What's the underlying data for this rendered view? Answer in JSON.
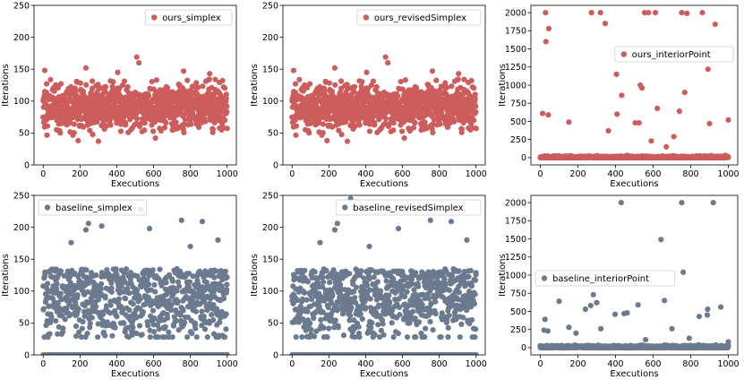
{
  "colors": {
    "ours": "#cd5c5c",
    "baseline": "#6b7a8f"
  },
  "chart_data": [
    {
      "id": "ours_simplex",
      "type": "scatter",
      "series_name": "ours_simplex",
      "color_key": "ours",
      "xlabel": "Executions",
      "ylabel": "Iterations",
      "xlim": [
        -50,
        1050
      ],
      "ylim": [
        0,
        250
      ],
      "xticks": [
        0,
        200,
        400,
        600,
        800,
        1000
      ],
      "yticks": [
        0,
        50,
        100,
        150,
        200,
        250
      ],
      "legend_loc": "upper-right",
      "dist": {
        "n": 1000,
        "mean": 92,
        "sd": 18,
        "seed": 11
      },
      "outliers": [
        [
          8,
          148
        ],
        [
          232,
          152
        ],
        [
          405,
          145
        ],
        [
          508,
          169
        ],
        [
          520,
          160
        ],
        [
          763,
          147
        ],
        [
          905,
          143
        ],
        [
          975,
          132
        ],
        [
          190,
          38
        ],
        [
          300,
          37
        ],
        [
          610,
          42
        ]
      ],
      "zeros": false
    },
    {
      "id": "ours_revisedSimplex",
      "type": "scatter",
      "series_name": "ours_revisedSimplex",
      "color_key": "ours",
      "xlabel": "Executions",
      "ylabel": "Iterations",
      "xlim": [
        -50,
        1050
      ],
      "ylim": [
        0,
        250
      ],
      "xticks": [
        0,
        200,
        400,
        600,
        800,
        1000
      ],
      "yticks": [
        0,
        50,
        100,
        150,
        200,
        250
      ],
      "legend_loc": "upper-right",
      "dist": {
        "n": 1000,
        "mean": 92,
        "sd": 18,
        "seed": 11
      },
      "outliers": [
        [
          8,
          148
        ],
        [
          232,
          152
        ],
        [
          405,
          145
        ],
        [
          508,
          169
        ],
        [
          520,
          160
        ],
        [
          763,
          147
        ],
        [
          905,
          143
        ],
        [
          975,
          132
        ],
        [
          190,
          38
        ],
        [
          300,
          37
        ],
        [
          610,
          42
        ]
      ],
      "zeros": false
    },
    {
      "id": "ours_interiorPoint",
      "type": "scatter",
      "series_name": "ours_interiorPoint",
      "color_key": "ours",
      "xlabel": "Executions",
      "ylabel": "Iterations",
      "xlim": [
        -50,
        1050
      ],
      "ylim": [
        -100,
        2100
      ],
      "xticks": [
        0,
        200,
        400,
        600,
        800,
        1000
      ],
      "yticks": [
        0,
        250,
        500,
        750,
        1000,
        1250,
        1500,
        1750,
        2000
      ],
      "legend_loc": "center-right",
      "dist": {
        "n": 1000,
        "mean": 5,
        "sd": 8,
        "seed": 23
      },
      "outliers": [
        [
          28,
          2000
        ],
        [
          30,
          1600
        ],
        [
          45,
          1780
        ],
        [
          12,
          610
        ],
        [
          42,
          590
        ],
        [
          152,
          490
        ],
        [
          272,
          2000
        ],
        [
          320,
          2000
        ],
        [
          345,
          1850
        ],
        [
          362,
          370
        ],
        [
          405,
          1150
        ],
        [
          408,
          600
        ],
        [
          433,
          860
        ],
        [
          505,
          480
        ],
        [
          525,
          480
        ],
        [
          532,
          1000
        ],
        [
          541,
          960
        ],
        [
          555,
          2000
        ],
        [
          575,
          2000
        ],
        [
          612,
          2000
        ],
        [
          622,
          680
        ],
        [
          590,
          230
        ],
        [
          670,
          150
        ],
        [
          710,
          290
        ],
        [
          722,
          1380
        ],
        [
          740,
          640
        ],
        [
          752,
          2000
        ],
        [
          768,
          900
        ],
        [
          780,
          1990
        ],
        [
          862,
          2000
        ],
        [
          892,
          1220
        ],
        [
          900,
          470
        ],
        [
          930,
          1840
        ],
        [
          1000,
          520
        ]
      ],
      "zeros": false
    },
    {
      "id": "baseline_simplex",
      "type": "scatter",
      "series_name": "baseline_simplex",
      "color_key": "baseline",
      "xlabel": "Executions",
      "ylabel": "Iterations",
      "xlim": [
        -50,
        1050
      ],
      "ylim": [
        0,
        250
      ],
      "xticks": [
        0,
        200,
        400,
        600,
        800,
        1000
      ],
      "yticks": [
        0,
        50,
        100,
        150,
        200,
        250
      ],
      "legend_loc": "upper-left",
      "dist": {
        "n": 720,
        "mean": 90,
        "sd": 33,
        "seed": 37
      },
      "outliers": [
        [
          152,
          176
        ],
        [
          232,
          196
        ],
        [
          246,
          206
        ],
        [
          318,
          202
        ],
        [
          530,
          228
        ],
        [
          578,
          198
        ],
        [
          752,
          211
        ],
        [
          865,
          209
        ],
        [
          950,
          180
        ],
        [
          800,
          170
        ]
      ],
      "zeros": true
    },
    {
      "id": "baseline_revisedSimplex",
      "type": "scatter",
      "series_name": "baseline_revisedSimplex",
      "color_key": "baseline",
      "xlabel": "Executions",
      "ylabel": "Iterations",
      "xlim": [
        -50,
        1050
      ],
      "ylim": [
        0,
        250
      ],
      "xticks": [
        0,
        200,
        400,
        600,
        800,
        1000
      ],
      "yticks": [
        0,
        50,
        100,
        150,
        200,
        250
      ],
      "legend_loc": "upper-right",
      "dist": {
        "n": 720,
        "mean": 90,
        "sd": 33,
        "seed": 41
      },
      "outliers": [
        [
          152,
          176
        ],
        [
          232,
          196
        ],
        [
          246,
          206
        ],
        [
          318,
          245
        ],
        [
          530,
          228
        ],
        [
          578,
          198
        ],
        [
          752,
          211
        ],
        [
          865,
          209
        ],
        [
          950,
          180
        ],
        [
          420,
          170
        ]
      ],
      "zeros": true
    },
    {
      "id": "baseline_interiorPoint",
      "type": "scatter",
      "series_name": "baseline_interiorPoint",
      "color_key": "baseline",
      "xlabel": "Executions",
      "ylabel": "Iterations",
      "xlim": [
        -50,
        1050
      ],
      "ylim": [
        -100,
        2100
      ],
      "xticks": [
        0,
        200,
        400,
        600,
        800,
        1000
      ],
      "yticks": [
        0,
        250,
        500,
        750,
        1000,
        1250,
        1500,
        1750,
        2000
      ],
      "legend_loc": "center-left",
      "dist": {
        "n": 1000,
        "mean": 8,
        "sd": 10,
        "seed": 53
      },
      "outliers": [
        [
          25,
          390
        ],
        [
          20,
          240
        ],
        [
          40,
          230
        ],
        [
          100,
          640
        ],
        [
          152,
          280
        ],
        [
          190,
          200
        ],
        [
          240,
          530
        ],
        [
          268,
          580
        ],
        [
          282,
          730
        ],
        [
          300,
          620
        ],
        [
          322,
          260
        ],
        [
          398,
          460
        ],
        [
          430,
          2000
        ],
        [
          446,
          470
        ],
        [
          462,
          480
        ],
        [
          520,
          590
        ],
        [
          560,
          110
        ],
        [
          642,
          1490
        ],
        [
          660,
          650
        ],
        [
          700,
          260
        ],
        [
          752,
          2000
        ],
        [
          760,
          1040
        ],
        [
          792,
          130
        ],
        [
          845,
          430
        ],
        [
          888,
          450
        ],
        [
          890,
          530
        ],
        [
          920,
          2000
        ],
        [
          960,
          560
        ],
        [
          1000,
          80
        ]
      ],
      "zeros": false
    }
  ]
}
